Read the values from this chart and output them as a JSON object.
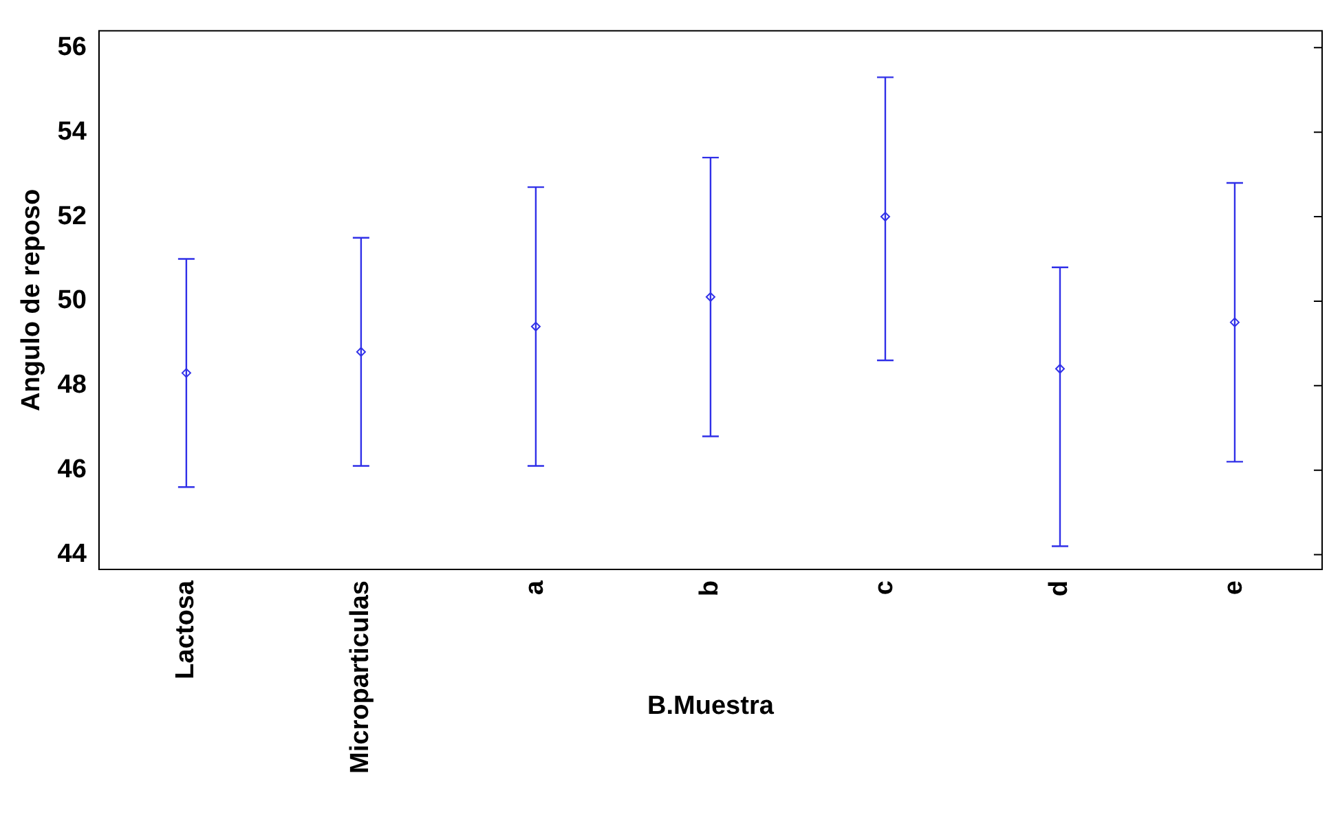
{
  "chart_data": {
    "type": "scatter",
    "xlabel": "B.Muestra",
    "ylabel": "Angulo de reposo",
    "categories": [
      "Lactosa",
      "Microparticulas",
      "a",
      "b",
      "c",
      "d",
      "e"
    ],
    "series": [
      {
        "color": "#3030e8",
        "values": [
          48.3,
          48.8,
          49.4,
          50.1,
          52.0,
          48.4,
          49.5
        ],
        "errors": [
          [
            45.6,
            51.0
          ],
          [
            46.1,
            51.5
          ],
          [
            46.1,
            52.7
          ],
          [
            46.8,
            53.4
          ],
          [
            48.6,
            55.3
          ],
          [
            44.2,
            50.8
          ],
          [
            46.2,
            52.8
          ]
        ]
      }
    ],
    "marker": "diamond",
    "ylim": [
      43.65,
      56.4
    ],
    "yticks": [
      44,
      46,
      48,
      50,
      52,
      54,
      56
    ],
    "grid": false,
    "legend": false
  }
}
